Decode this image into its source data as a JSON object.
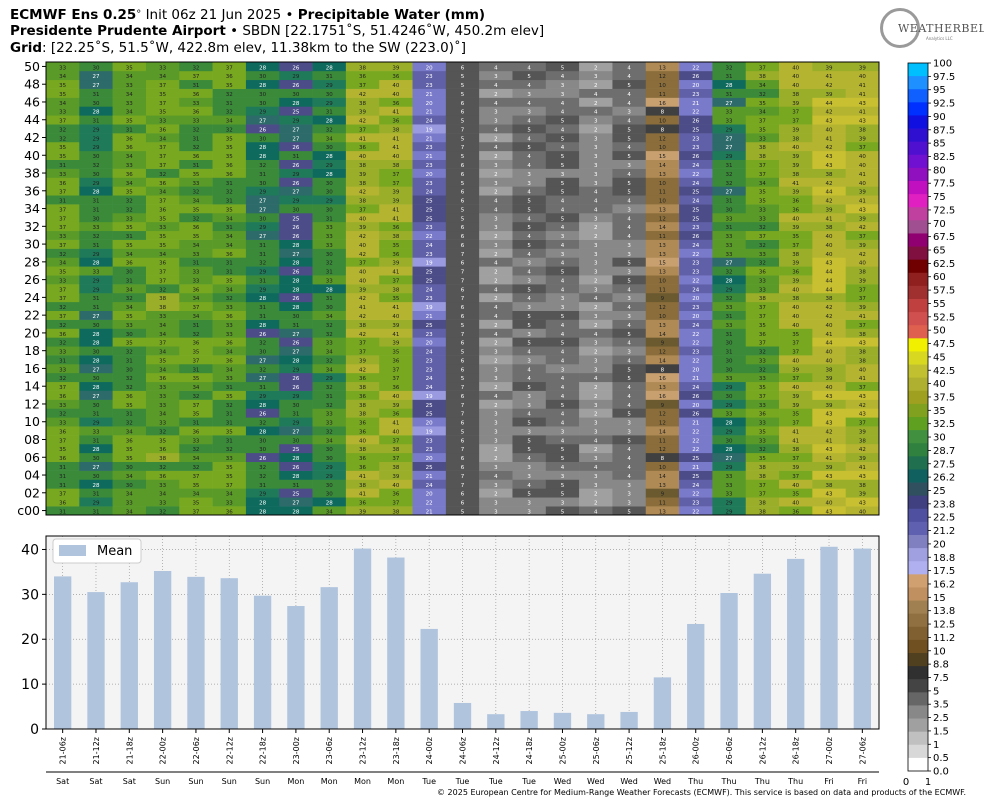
{
  "header": {
    "line1_bold_a": "ECMWF Ens 0.25",
    "line1_deg": "°",
    "line1_init": "Init 06z 21 Jun 2025",
    "line1_sep": "•",
    "line1_bold_b": "Precipitable Water (mm)",
    "line2_bold": "Presidente Prudente Airport",
    "line2_rest": "• SBDN [22.1751˚S, 51.4246˚W, 450.2m elev]",
    "line3_bold": "Grid",
    "line3_rest": ": [22.25˚S, 51.5˚W, 422.8m elev, 11.38km to the SW (223.0)˚]"
  },
  "logo": {
    "name": "Weather Bell logo",
    "text": "WEATHERBELL",
    "subtext": "Analytics LLC"
  },
  "copyright": "© 2025 European Centre for Medium-Range Weather Forecasts (ECMWF). This service is based on data and products of the ECMWF.",
  "chart_data": [
    {
      "type": "heatmap",
      "title": "Precipitable Water (mm) ensemble members",
      "x": [
        "21-06z",
        "21-12z",
        "21-18z",
        "22-00z",
        "22-06z",
        "22-12z",
        "22-18z",
        "23-00z",
        "23-06z",
        "23-12z",
        "23-18z",
        "24-00z",
        "24-06z",
        "24-12z",
        "24-18z",
        "25-00z",
        "25-06z",
        "25-12z",
        "25-18z",
        "26-00z",
        "26-06z",
        "26-12z",
        "26-18z",
        "27-00z",
        "27-06z"
      ],
      "y_labels": [
        "c00",
        "02",
        "04",
        "06",
        "08",
        "10",
        "12",
        "14",
        "16",
        "18",
        "20",
        "22",
        "24",
        "26",
        "28",
        "30",
        "32",
        "34",
        "36",
        "38",
        "40",
        "42",
        "44",
        "46",
        "48",
        "50"
      ],
      "member_count": 51,
      "approx_member_values_by_time": {
        "21-06z": 34,
        "21-12z": 30,
        "21-18z": 33,
        "22-00z": 35,
        "22-06z": 34,
        "22-12z": 34,
        "22-18z": 29,
        "23-00z": 28,
        "23-06z": 31,
        "23-12z": 39,
        "23-18z": 38,
        "24-00z": 22,
        "24-06z": 6,
        "24-12z": 3,
        "24-18z": 4,
        "25-00z": 4,
        "25-06z": 3,
        "25-12z": 4,
        "25-18z": 12,
        "26-00z": 23,
        "26-06z": 30,
        "26-12z": 35,
        "26-18z": 38,
        "27-00z": 41,
        "27-06z": 40
      },
      "colorbar": {
        "ticks": [
          "100",
          "97.5",
          "95",
          "92.5",
          "90",
          "87.5",
          "85",
          "82.5",
          "80",
          "77.5",
          "75",
          "72.5",
          "70",
          "67.5",
          "65",
          "62.5",
          "60",
          "57.5",
          "55",
          "52.5",
          "50",
          "47.5",
          "45",
          "42.5",
          "40",
          "37.5",
          "35",
          "32.5",
          "30",
          "28.7",
          "27.5",
          "26.2",
          "25",
          "23.8",
          "22.5",
          "21.2",
          "20",
          "18.8",
          "17.5",
          "16.2",
          "15",
          "13.8",
          "12.5",
          "11.2",
          "10",
          "8.8",
          "7.5",
          "5",
          "3.5",
          "2.5",
          "1.5",
          "1",
          "0.5",
          "0.0"
        ],
        "colors": [
          "#00bfff",
          "#1e90ff",
          "#1060ff",
          "#0030ff",
          "#1010e0",
          "#3010d0",
          "#5010d0",
          "#7010d0",
          "#9010c0",
          "#c010c0",
          "#e020c0",
          "#c040a0",
          "#a05090",
          "#900070",
          "#801040",
          "#700000",
          "#902020",
          "#a03030",
          "#c04040",
          "#d05050",
          "#e06050",
          "#f0f000",
          "#d8d820",
          "#c0c030",
          "#b0b030",
          "#a0a020",
          "#80a020",
          "#60a020",
          "#409040",
          "#308040",
          "#207050",
          "#106060",
          "#305060",
          "#404080",
          "#5050a0",
          "#6060b0",
          "#8080c0",
          "#a0a0e0",
          "#b0b0f0",
          "#d0a070",
          "#c09060",
          "#a08050",
          "#907040",
          "#806030",
          "#705020",
          "#504020",
          "#303030",
          "#444444",
          "#666666",
          "#888888",
          "#a0a0a0",
          "#c0c0c0",
          "#d8d8d8",
          "#ffffff"
        ],
        "secondary_ticks": [
          "0",
          "1"
        ]
      }
    },
    {
      "type": "bar",
      "title": "",
      "legend": [
        "Mean"
      ],
      "series": [
        {
          "name": "Mean",
          "color": "#b0c4de",
          "values": [
            34.0,
            30.5,
            32.7,
            35.2,
            33.9,
            33.6,
            29.7,
            27.4,
            31.6,
            40.2,
            38.2,
            22.3,
            5.8,
            3.3,
            4.0,
            3.6,
            3.3,
            3.8,
            11.5,
            23.4,
            30.3,
            34.6,
            37.9,
            40.6,
            40.2
          ]
        }
      ],
      "categories": [
        "21-06z",
        "21-12z",
        "21-18z",
        "22-00z",
        "22-06z",
        "22-12z",
        "22-18z",
        "23-00z",
        "23-06z",
        "23-12z",
        "23-18z",
        "24-00z",
        "24-06z",
        "24-12z",
        "24-18z",
        "25-00z",
        "25-06z",
        "25-12z",
        "25-18z",
        "26-00z",
        "26-06z",
        "26-12z",
        "26-18z",
        "27-00z",
        "27-06z"
      ],
      "days": [
        "Sat",
        "Sat",
        "Sat",
        "Sun",
        "Sun",
        "Sun",
        "Sun",
        "Mon",
        "Mon",
        "Mon",
        "Mon",
        "Tue",
        "Tue",
        "Tue",
        "Tue",
        "Wed",
        "Wed",
        "Wed",
        "Wed",
        "Thu",
        "Thu",
        "Thu",
        "Thu",
        "Fri",
        "Fri"
      ],
      "ylim": [
        0,
        43
      ],
      "yticks": [
        0,
        10,
        20,
        30,
        40
      ],
      "grid": true,
      "legend_position": "top-left"
    }
  ]
}
